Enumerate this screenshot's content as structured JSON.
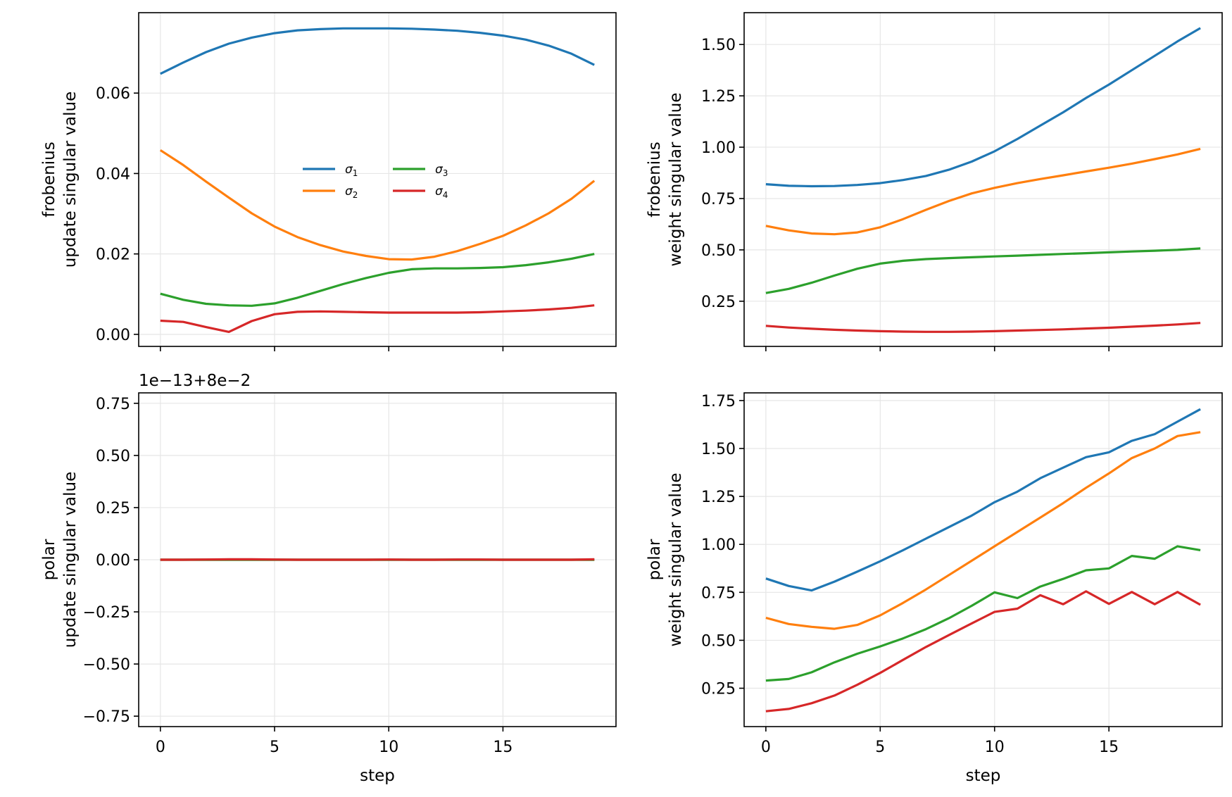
{
  "chart_data": [
    {
      "id": "frob-update",
      "type": "line",
      "ylabel_lines": [
        "frobenius",
        "update singular value"
      ],
      "xlabel": "",
      "xlim": [
        -0.95,
        19.95
      ],
      "ylim": [
        -0.003,
        0.08
      ],
      "xticks": [
        0,
        5,
        10,
        15
      ],
      "yticks": [
        0.0,
        0.02,
        0.04,
        0.06
      ],
      "ytick_labels": [
        "0.00",
        "0.02",
        "0.04",
        "0.06"
      ],
      "show_xtick_labels": false,
      "grid": true,
      "legend": {
        "placement": "center",
        "columns": 2
      },
      "x": [
        0,
        1,
        2,
        3,
        4,
        5,
        6,
        7,
        8,
        9,
        10,
        11,
        12,
        13,
        14,
        15,
        16,
        17,
        18,
        19
      ],
      "series": [
        {
          "name": "σ1",
          "sub": "1",
          "color": "#1f77b4",
          "values": [
            0.0648,
            0.0676,
            0.0702,
            0.0723,
            0.0738,
            0.0749,
            0.0756,
            0.0759,
            0.0761,
            0.0761,
            0.0761,
            0.076,
            0.0758,
            0.0755,
            0.075,
            0.0743,
            0.0733,
            0.0718,
            0.0698,
            0.067
          ]
        },
        {
          "name": "σ2",
          "sub": "2",
          "color": "#ff7f0e",
          "values": [
            0.0458,
            0.0421,
            0.038,
            0.034,
            0.0301,
            0.0268,
            0.0242,
            0.0222,
            0.0206,
            0.0195,
            0.0187,
            0.0186,
            0.0193,
            0.0207,
            0.0225,
            0.0245,
            0.0271,
            0.0301,
            0.0337,
            0.0382
          ]
        },
        {
          "name": "σ3",
          "sub": "3",
          "color": "#2ca02c",
          "values": [
            0.0101,
            0.0086,
            0.0076,
            0.0072,
            0.0071,
            0.0077,
            0.0091,
            0.0108,
            0.0125,
            0.014,
            0.0153,
            0.0162,
            0.0164,
            0.0164,
            0.0165,
            0.0167,
            0.0172,
            0.0179,
            0.0188,
            0.02
          ]
        },
        {
          "name": "σ4",
          "sub": "4",
          "color": "#d62728",
          "values": [
            0.0034,
            0.0031,
            0.0018,
            0.0006,
            0.0033,
            0.005,
            0.0056,
            0.0057,
            0.0056,
            0.0055,
            0.0054,
            0.0054,
            0.0054,
            0.0054,
            0.0055,
            0.0057,
            0.0059,
            0.0062,
            0.0066,
            0.0072
          ]
        }
      ]
    },
    {
      "id": "frob-weight",
      "type": "line",
      "ylabel_lines": [
        "frobenius",
        "weight singular value"
      ],
      "xlabel": "",
      "xlim": [
        -0.95,
        19.95
      ],
      "ylim": [
        0.03,
        1.655
      ],
      "xticks": [
        0,
        5,
        10,
        15
      ],
      "yticks": [
        0.25,
        0.5,
        0.75,
        1.0,
        1.25,
        1.5
      ],
      "ytick_labels": [
        "0.25",
        "0.50",
        "0.75",
        "1.00",
        "1.25",
        "1.50"
      ],
      "show_xtick_labels": false,
      "grid": true,
      "x": [
        0,
        1,
        2,
        3,
        4,
        5,
        6,
        7,
        8,
        9,
        10,
        11,
        12,
        13,
        14,
        15,
        16,
        17,
        18,
        19
      ],
      "series": [
        {
          "color": "#1f77b4",
          "values": [
            0.82,
            0.812,
            0.81,
            0.811,
            0.816,
            0.825,
            0.84,
            0.86,
            0.89,
            0.93,
            0.98,
            1.04,
            1.105,
            1.17,
            1.24,
            1.305,
            1.375,
            1.445,
            1.515,
            1.58
          ]
        },
        {
          "color": "#ff7f0e",
          "values": [
            0.617,
            0.595,
            0.58,
            0.576,
            0.585,
            0.61,
            0.65,
            0.695,
            0.738,
            0.775,
            0.802,
            0.825,
            0.845,
            0.863,
            0.882,
            0.9,
            0.92,
            0.942,
            0.965,
            0.992
          ]
        },
        {
          "color": "#2ca02c",
          "values": [
            0.29,
            0.31,
            0.34,
            0.375,
            0.408,
            0.433,
            0.447,
            0.455,
            0.46,
            0.464,
            0.468,
            0.472,
            0.476,
            0.48,
            0.484,
            0.488,
            0.492,
            0.496,
            0.5,
            0.507
          ]
        },
        {
          "color": "#d62728",
          "values": [
            0.13,
            0.122,
            0.116,
            0.111,
            0.107,
            0.104,
            0.102,
            0.101,
            0.101,
            0.102,
            0.104,
            0.107,
            0.11,
            0.113,
            0.117,
            0.121,
            0.126,
            0.131,
            0.137,
            0.144
          ]
        }
      ]
    },
    {
      "id": "polar-update",
      "type": "line",
      "ylabel_lines": [
        "polar",
        "update singular value"
      ],
      "xlabel": "step",
      "offset_text": "1e−13+8e−2",
      "xlim": [
        -0.95,
        19.95
      ],
      "ylim": [
        -0.8,
        0.8
      ],
      "xticks": [
        0,
        5,
        10,
        15
      ],
      "yticks": [
        -0.75,
        -0.5,
        -0.25,
        0.0,
        0.25,
        0.5,
        0.75
      ],
      "ytick_labels": [
        "−0.75",
        "−0.50",
        "−0.25",
        "0.00",
        "0.25",
        "0.50",
        "0.75"
      ],
      "show_xtick_labels": true,
      "grid": true,
      "x": [
        0,
        1,
        2,
        3,
        4,
        5,
        6,
        7,
        8,
        9,
        10,
        11,
        12,
        13,
        14,
        15,
        16,
        17,
        18,
        19
      ],
      "series": [
        {
          "color": "#1f77b4",
          "values": [
            0,
            0,
            0,
            0,
            0,
            0,
            0,
            0,
            0,
            0,
            0,
            0,
            0,
            0,
            0,
            0,
            0,
            0,
            0,
            0
          ]
        },
        {
          "color": "#ff7f0e",
          "values": [
            0,
            0,
            0,
            0,
            0,
            0,
            0,
            0,
            0,
            0,
            0,
            0,
            0,
            0,
            0,
            0,
            0,
            0,
            0,
            0
          ]
        },
        {
          "color": "#2ca02c",
          "values": [
            0,
            0,
            0,
            0,
            0,
            0,
            0,
            0,
            0,
            0,
            0,
            0,
            0,
            0,
            0,
            0,
            0,
            0,
            0,
            0
          ]
        },
        {
          "color": "#d62728",
          "values": [
            0,
            0,
            0.001,
            0.002,
            0.002,
            0.001,
            0,
            0,
            0,
            0,
            0.001,
            0,
            0,
            0.001,
            0.001,
            0,
            0,
            0,
            0,
            0.002
          ]
        }
      ]
    },
    {
      "id": "polar-weight",
      "type": "line",
      "ylabel_lines": [
        "polar",
        "weight singular value"
      ],
      "xlabel": "step",
      "xlim": [
        -0.95,
        19.95
      ],
      "ylim": [
        0.05,
        1.79
      ],
      "xticks": [
        0,
        5,
        10,
        15
      ],
      "yticks": [
        0.25,
        0.5,
        0.75,
        1.0,
        1.25,
        1.5,
        1.75
      ],
      "ytick_labels": [
        "0.25",
        "0.50",
        "0.75",
        "1.00",
        "1.25",
        "1.50",
        "1.75"
      ],
      "show_xtick_labels": true,
      "grid": true,
      "x": [
        0,
        1,
        2,
        3,
        4,
        5,
        6,
        7,
        8,
        9,
        10,
        11,
        12,
        13,
        14,
        15,
        16,
        17,
        18,
        19
      ],
      "series": [
        {
          "color": "#1f77b4",
          "values": [
            0.822,
            0.783,
            0.76,
            0.806,
            0.858,
            0.912,
            0.97,
            1.03,
            1.09,
            1.15,
            1.22,
            1.275,
            1.345,
            1.4,
            1.455,
            1.48,
            1.54,
            1.575,
            1.64,
            1.705
          ]
        },
        {
          "color": "#ff7f0e",
          "values": [
            0.617,
            0.585,
            0.57,
            0.56,
            0.58,
            0.63,
            0.695,
            0.765,
            0.84,
            0.915,
            0.99,
            1.065,
            1.14,
            1.215,
            1.295,
            1.37,
            1.45,
            1.5,
            1.565,
            1.585
          ]
        },
        {
          "color": "#2ca02c",
          "values": [
            0.29,
            0.298,
            0.333,
            0.385,
            0.43,
            0.468,
            0.51,
            0.558,
            0.615,
            0.68,
            0.75,
            0.72,
            0.78,
            0.82,
            0.865,
            0.875,
            0.94,
            0.925,
            0.99,
            0.97
          ]
        },
        {
          "color": "#d62728",
          "values": [
            0.13,
            0.142,
            0.172,
            0.212,
            0.268,
            0.33,
            0.398,
            0.465,
            0.527,
            0.588,
            0.648,
            0.665,
            0.735,
            0.688,
            0.755,
            0.69,
            0.752,
            0.688,
            0.752,
            0.685
          ]
        }
      ]
    }
  ]
}
